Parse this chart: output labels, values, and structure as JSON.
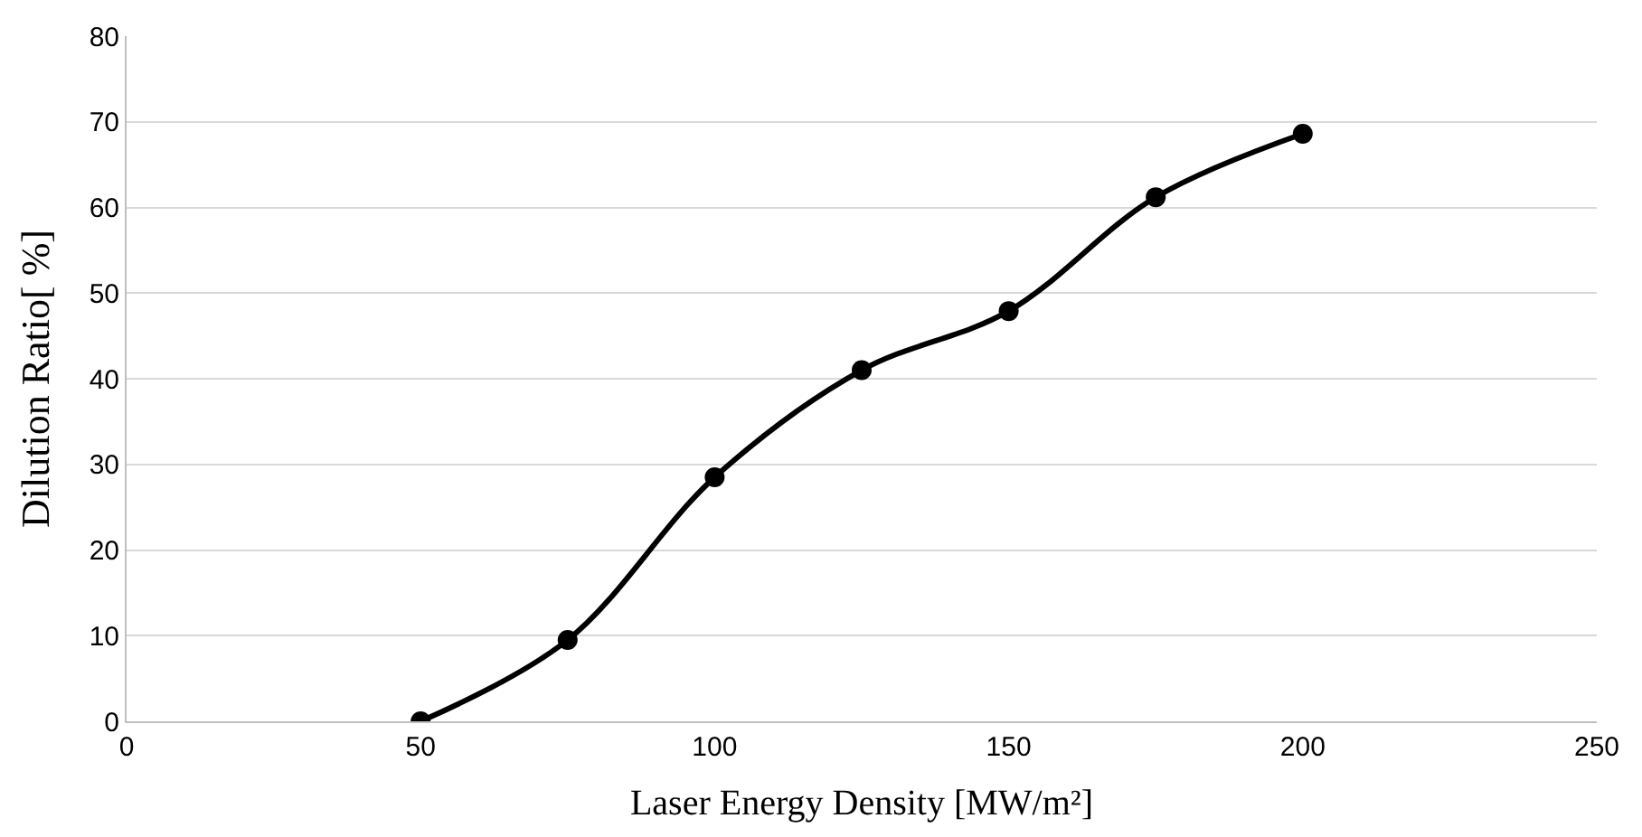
{
  "chart_data": {
    "type": "line",
    "xlabel": "Laser Energy Density [MW/m²]",
    "ylabel": "Dilution Ratio[ %]",
    "x": [
      50,
      75,
      100,
      125,
      150,
      175,
      200
    ],
    "series": [
      {
        "color": "#000000",
        "values": [
          0,
          9.5,
          28.5,
          41.0,
          47.9,
          61.2,
          68.6
        ]
      }
    ],
    "xlim": [
      0,
      250
    ],
    "xticks": [
      0,
      50,
      100,
      150,
      200,
      250
    ],
    "ylim": [
      0,
      80
    ],
    "yticks": [
      0,
      10,
      20,
      30,
      40,
      50,
      60,
      70,
      80
    ],
    "grid": "y",
    "marker": "circle",
    "line_style": "solid"
  }
}
